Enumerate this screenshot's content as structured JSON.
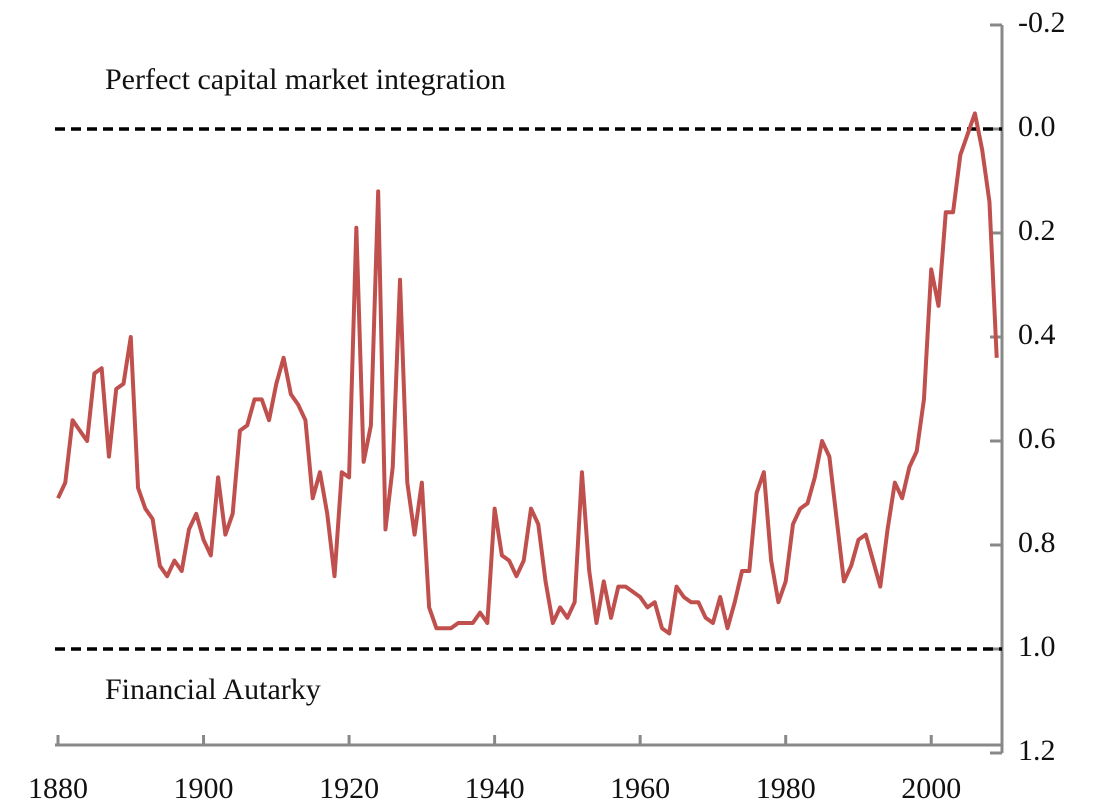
{
  "chart_data": {
    "type": "line",
    "annotations": [
      "Perfect capital market integration",
      "Financial Autarky"
    ],
    "hlines": [
      0,
      1
    ],
    "color": "#c0504d",
    "x": [
      1880,
      1881,
      1882,
      1883,
      1884,
      1885,
      1886,
      1887,
      1888,
      1889,
      1890,
      1891,
      1892,
      1893,
      1894,
      1895,
      1896,
      1897,
      1898,
      1899,
      1900,
      1901,
      1902,
      1903,
      1904,
      1905,
      1906,
      1907,
      1908,
      1909,
      1910,
      1911,
      1912,
      1913,
      1914,
      1915,
      1916,
      1917,
      1918,
      1919,
      1920,
      1921,
      1922,
      1923,
      1924,
      1925,
      1926,
      1927,
      1928,
      1929,
      1930,
      1931,
      1932,
      1933,
      1934,
      1935,
      1936,
      1937,
      1938,
      1939,
      1940,
      1941,
      1942,
      1943,
      1944,
      1945,
      1946,
      1947,
      1948,
      1949,
      1950,
      1951,
      1952,
      1953,
      1954,
      1955,
      1956,
      1957,
      1958,
      1959,
      1960,
      1961,
      1962,
      1963,
      1964,
      1965,
      1966,
      1967,
      1968,
      1969,
      1970,
      1971,
      1972,
      1973,
      1974,
      1975,
      1976,
      1977,
      1978,
      1979,
      1980,
      1981,
      1982,
      1983,
      1984,
      1985,
      1986,
      1987,
      1988,
      1989,
      1990,
      1991,
      1992,
      1993,
      1994,
      1995,
      1996,
      1997,
      1998,
      1999,
      2000,
      2001,
      2002,
      2003,
      2004,
      2005,
      2006,
      2007,
      2008,
      2009
    ],
    "values": [
      0.71,
      0.68,
      0.56,
      0.58,
      0.6,
      0.47,
      0.46,
      0.63,
      0.5,
      0.49,
      0.4,
      0.69,
      0.73,
      0.75,
      0.84,
      0.86,
      0.83,
      0.85,
      0.77,
      0.74,
      0.79,
      0.82,
      0.67,
      0.78,
      0.74,
      0.58,
      0.57,
      0.52,
      0.52,
      0.56,
      0.49,
      0.44,
      0.51,
      0.53,
      0.56,
      0.71,
      0.66,
      0.74,
      0.86,
      0.66,
      0.67,
      0.19,
      0.64,
      0.57,
      0.12,
      0.77,
      0.65,
      0.29,
      0.68,
      0.78,
      0.68,
      0.92,
      0.96,
      0.96,
      0.96,
      0.95,
      0.95,
      0.95,
      0.93,
      0.95,
      0.73,
      0.82,
      0.83,
      0.86,
      0.83,
      0.73,
      0.76,
      0.87,
      0.95,
      0.92,
      0.94,
      0.91,
      0.66,
      0.85,
      0.95,
      0.87,
      0.94,
      0.88,
      0.88,
      0.89,
      0.9,
      0.92,
      0.91,
      0.96,
      0.97,
      0.88,
      0.9,
      0.91,
      0.91,
      0.94,
      0.95,
      0.9,
      0.96,
      0.91,
      0.85,
      0.85,
      0.7,
      0.66,
      0.83,
      0.91,
      0.87,
      0.76,
      0.73,
      0.72,
      0.67,
      0.6,
      0.63,
      0.75,
      0.87,
      0.84,
      0.79,
      0.78,
      0.83,
      0.88,
      0.77,
      0.68,
      0.71,
      0.65,
      0.62,
      0.52,
      0.27,
      0.34,
      0.16,
      0.16,
      0.05,
      0.01,
      -0.03,
      0.04,
      0.14,
      0.44
    ],
    "xlim": [
      1880,
      2010
    ],
    "xticks": [
      1880,
      1900,
      1920,
      1940,
      1960,
      1980,
      2000
    ],
    "ylim": [
      -0.2,
      1.2
    ],
    "yticks": [
      -0.2,
      {
        "value": 0,
        "label": "0.0"
      },
      0.2,
      0.4,
      0.6,
      0.8,
      {
        "value": 1,
        "label": "1.0"
      },
      1.2
    ],
    "y_inverted": true,
    "y_axis_side": "right"
  }
}
